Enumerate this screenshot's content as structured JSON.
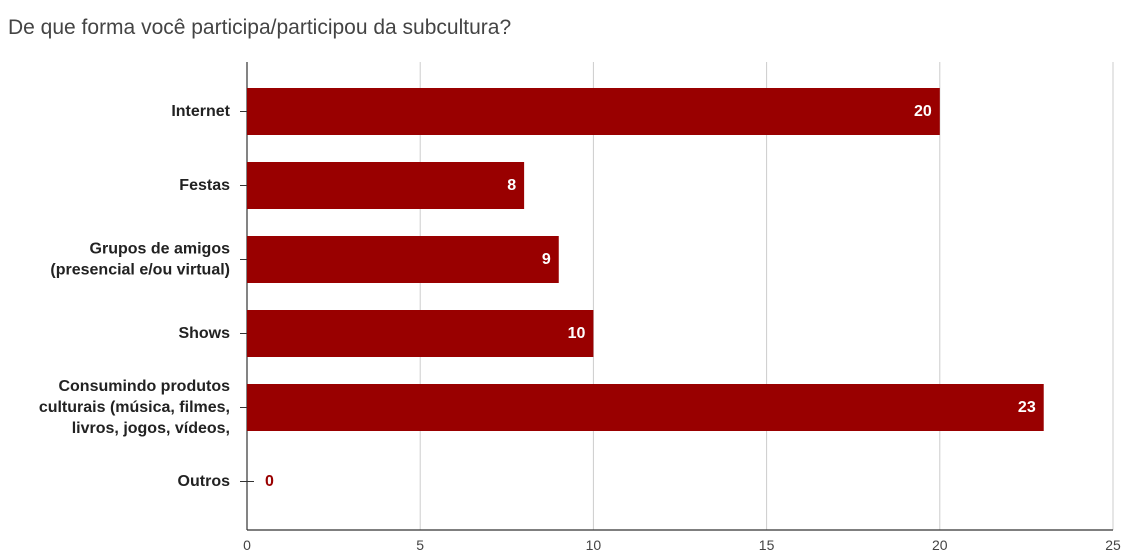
{
  "chart_data": {
    "type": "bar",
    "orientation": "horizontal",
    "title": "De que forma você participa/participou da subcultura?",
    "xlabel": "",
    "ylabel": "",
    "categories": [
      [
        "Internet"
      ],
      [
        "Festas"
      ],
      [
        "Grupos de amigos",
        "(presencial e/ou virtual)"
      ],
      [
        "Shows"
      ],
      [
        "Consumindo produtos",
        "culturais (música, filmes,",
        "livros, jogos, vídeos,"
      ],
      [
        "Outros"
      ]
    ],
    "values": [
      20,
      8,
      9,
      10,
      23,
      0
    ],
    "xlim": [
      0,
      25
    ],
    "xticks": [
      0,
      5,
      10,
      15,
      20,
      25
    ],
    "grid": true,
    "legend": "none",
    "colors": {
      "bar": "#990000",
      "label_inside": "#ffffff",
      "label_outside": "#990000",
      "grid": "#cccccc",
      "axis": "#333333"
    }
  }
}
